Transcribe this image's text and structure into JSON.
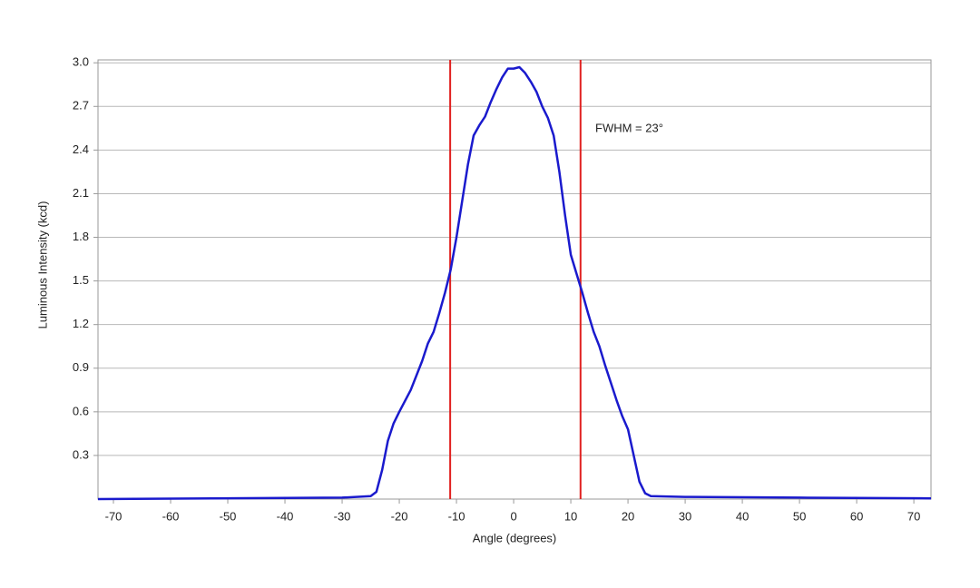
{
  "chart_data": {
    "type": "line",
    "x_label": "Angle (degrees)",
    "y_label": "Luminous Intensity (kcd)",
    "annotation": "FWHM = 23°",
    "xlim": [
      -72.7,
      73
    ],
    "ylim": [
      0,
      3.02
    ],
    "xticks": [
      -70,
      -60,
      -50,
      -40,
      -30,
      -20,
      -10,
      0,
      10,
      20,
      30,
      40,
      50,
      60,
      70
    ],
    "yticks": [
      0.3,
      0.6,
      0.9,
      1.2,
      1.5,
      1.8,
      2.1,
      2.4,
      2.7,
      {
        "value": 3,
        "label": "3.0"
      }
    ],
    "grid": true,
    "vlines": [
      -11.1,
      11.7
    ],
    "vline_color": "#e0201f",
    "series": [
      {
        "color": "#1a1acd",
        "x": [
          -72.7,
          -30,
          -25,
          -24,
          -23,
          -22,
          -21,
          -20,
          -18,
          -16,
          -15,
          -14,
          -13,
          -12,
          -11,
          -10,
          -9,
          -8,
          -7,
          -6,
          -5,
          -4,
          -3,
          -2,
          -1,
          0,
          1,
          2,
          3,
          4,
          5,
          6,
          7,
          8,
          9,
          10,
          11,
          12,
          13,
          14,
          15,
          16,
          17,
          18,
          19,
          20,
          21,
          22,
          23,
          24,
          30,
          50,
          73
        ],
        "values": [
          0.0,
          0.01,
          0.02,
          0.05,
          0.2,
          0.4,
          0.52,
          0.6,
          0.75,
          0.95,
          1.07,
          1.15,
          1.28,
          1.42,
          1.58,
          1.8,
          2.05,
          2.3,
          2.5,
          2.57,
          2.63,
          2.73,
          2.82,
          2.9,
          2.96,
          2.96,
          2.97,
          2.93,
          2.87,
          2.8,
          2.7,
          2.62,
          2.5,
          2.25,
          1.95,
          1.68,
          1.55,
          1.42,
          1.28,
          1.15,
          1.05,
          0.92,
          0.8,
          0.68,
          0.57,
          0.48,
          0.3,
          0.12,
          0.04,
          0.02,
          0.015,
          0.01,
          0.005
        ]
      }
    ]
  }
}
